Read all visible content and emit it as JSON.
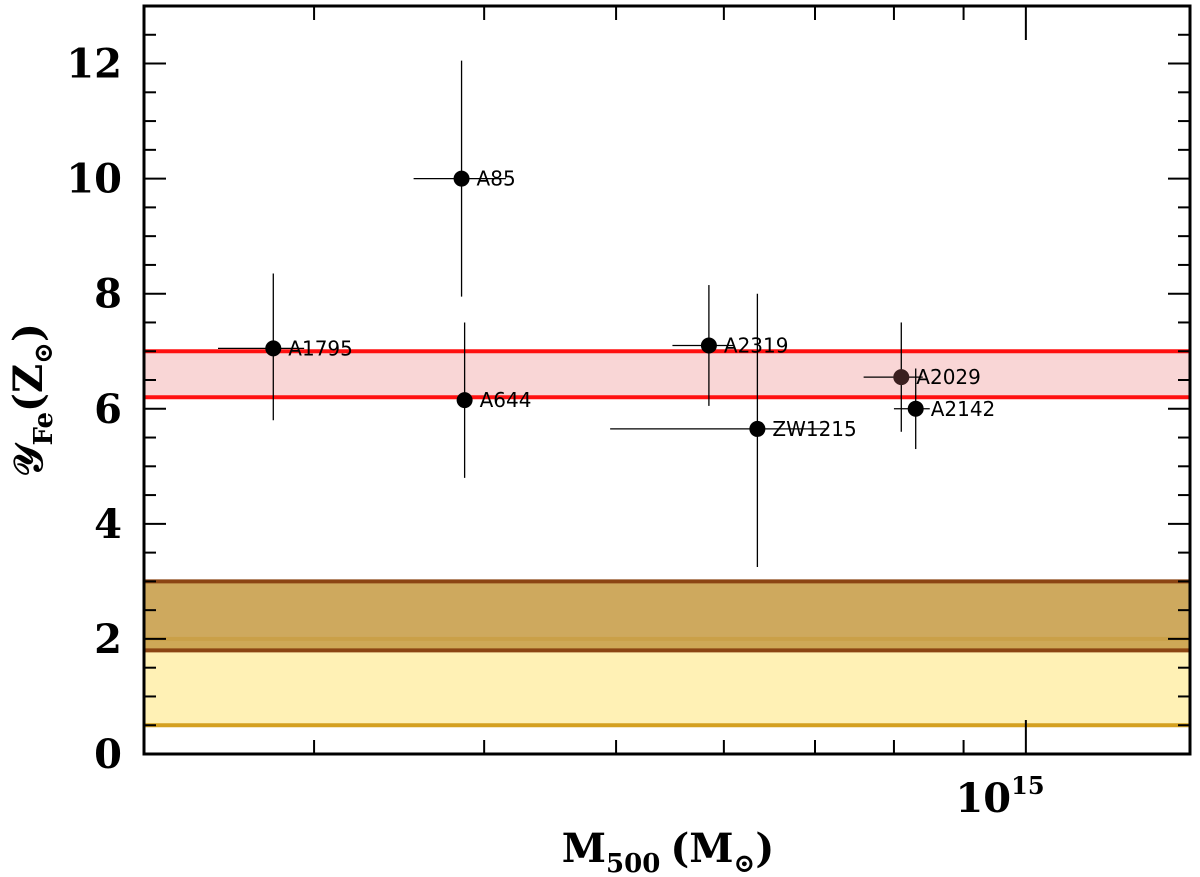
{
  "chart_data": {
    "type": "scatter",
    "xlabel": {
      "main": "M",
      "sub": "500",
      "unit": "(M",
      "unit_sub": "⊙",
      "unit_close": ")"
    },
    "ylabel": {
      "main": "𝒴",
      "sub": "Fe",
      "unit": "(Z",
      "unit_sub": "⊙",
      "unit_close": ")"
    },
    "x_scale": "log",
    "xlim": [
      225000000000000.0,
      1320000000000000.0
    ],
    "ylim": [
      0,
      13
    ],
    "x_tick_label": {
      "base": "10",
      "exp": "15",
      "value": 1000000000000000.0
    },
    "x_major_ticks": [
      1000000000000000.0
    ],
    "x_minor_ticks": [
      300000000000000.0,
      400000000000000.0,
      500000000000000.0,
      600000000000000.0,
      700000000000000.0,
      800000000000000.0,
      900000000000000.0
    ],
    "y_ticks": [
      0,
      2,
      4,
      6,
      8,
      10,
      12
    ],
    "y_minor_step": 0.5,
    "points": [
      {
        "label": "A1795",
        "x": 280000000000000.0,
        "y": 7.05,
        "xerr": [
          25000000000000.0,
          15000000000000.0
        ],
        "yerr": [
          1.25,
          1.3
        ],
        "color": "#000000"
      },
      {
        "label": "A85",
        "x": 385000000000000.0,
        "y": 10.0,
        "xerr": [
          30000000000000.0,
          30000000000000.0
        ],
        "yerr": [
          2.05,
          2.05
        ],
        "color": "#000000"
      },
      {
        "label": "A644",
        "x": 387000000000000.0,
        "y": 6.15,
        "xerr": [
          0,
          0
        ],
        "yerr": [
          1.35,
          1.35
        ],
        "color": "#000000"
      },
      {
        "label": "A2319",
        "x": 585000000000000.0,
        "y": 7.1,
        "xerr": [
          35000000000000.0,
          25000000000000.0
        ],
        "yerr": [
          1.05,
          1.05
        ],
        "color": "#000000"
      },
      {
        "label": "ZW1215",
        "x": 635000000000000.0,
        "y": 5.65,
        "xerr": [
          140000000000000.0,
          80000000000000.0
        ],
        "yerr": [
          2.4,
          2.35
        ],
        "color": "#000000"
      },
      {
        "label": "A2029",
        "x": 810000000000000.0,
        "y": 6.55,
        "xerr": [
          50000000000000.0,
          30000000000000.0
        ],
        "yerr": [
          0.95,
          0.95
        ],
        "color": "#3a2020"
      },
      {
        "label": "A2142",
        "x": 830000000000000.0,
        "y": 6.0,
        "xerr": [
          30000000000000.0,
          20000000000000.0
        ],
        "yerr": [
          0.7,
          0.7
        ],
        "color": "#000000"
      }
    ],
    "bands": [
      {
        "y_low": 0.5,
        "y_high": 2.0,
        "fill": "#fff1b5",
        "edge": "#d4a020"
      },
      {
        "y_low": 1.8,
        "y_high": 3.0,
        "fill": "#c9a04d",
        "edge": "#8b4513",
        "fill_opacity": 0.9
      },
      {
        "y_low": 6.2,
        "y_high": 7.0,
        "fill": "#f9d6d6",
        "edge": "#ff1010"
      }
    ]
  }
}
